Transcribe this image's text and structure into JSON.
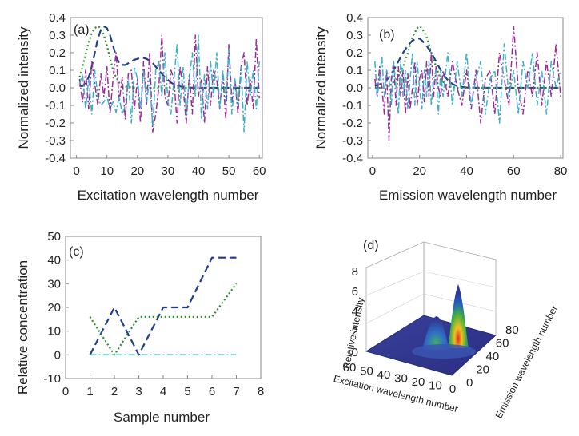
{
  "chart_data": [
    {
      "id": "a",
      "type": "line",
      "panel_label": "(a)",
      "xlabel": "Excitation wavelength number",
      "ylabel": "Normalized intensity",
      "xlim": [
        -2,
        61
      ],
      "ylim": [
        -0.4,
        0.4
      ],
      "xticks": [
        0,
        10,
        20,
        30,
        40,
        50,
        60
      ],
      "yticks": [
        -0.4,
        -0.3,
        -0.2,
        -0.1,
        0.0,
        0.1,
        0.2,
        0.3,
        0.4
      ],
      "ytick_labels": [
        "-0.4",
        "-0.3",
        "-0.2",
        "-0.1",
        "0.0",
        "0.1",
        "0.2",
        "0.3",
        "0.4"
      ],
      "grid": false,
      "series": [
        {
          "color": "#1f3f8f",
          "dash": "9,5",
          "width": 2.2,
          "x": [
            1,
            2,
            3,
            4,
            5,
            6,
            7,
            8,
            9,
            10,
            11,
            12,
            13,
            14,
            15,
            16,
            17,
            18,
            19,
            20,
            21,
            22,
            23,
            24,
            25,
            26,
            27,
            28,
            29,
            30,
            31,
            32,
            33,
            34,
            35,
            36,
            37,
            38,
            39,
            40,
            42,
            44,
            46,
            48,
            50,
            52,
            54,
            56,
            58,
            60
          ],
          "y": [
            0.01,
            0.01,
            0.03,
            0.06,
            0.12,
            0.2,
            0.28,
            0.33,
            0.35,
            0.34,
            0.3,
            0.24,
            0.18,
            0.14,
            0.13,
            0.13,
            0.14,
            0.15,
            0.16,
            0.165,
            0.17,
            0.17,
            0.165,
            0.155,
            0.14,
            0.12,
            0.1,
            0.08,
            0.06,
            0.045,
            0.03,
            0.02,
            0.013,
            0.008,
            0.005,
            0.003,
            0.002,
            0.001,
            0,
            0,
            0,
            0,
            0,
            0,
            0,
            0,
            0,
            0,
            0,
            0
          ]
        },
        {
          "color": "#2e8b2e",
          "dash": "2,3",
          "width": 2.2,
          "x": [
            1,
            2,
            3,
            4,
            5,
            6,
            7,
            8,
            9,
            10,
            11,
            12,
            13,
            14,
            15,
            16,
            17,
            18,
            20,
            22,
            24,
            26,
            28,
            30,
            32,
            34,
            36,
            38,
            40,
            44,
            48,
            52,
            56,
            60
          ],
          "y": [
            0.06,
            0.12,
            0.19,
            0.26,
            0.31,
            0.34,
            0.35,
            0.34,
            0.3,
            0.24,
            0.17,
            0.1,
            0.06,
            0.03,
            0.015,
            0.008,
            0.004,
            0.002,
            0.001,
            0,
            0,
            0,
            0,
            0,
            0,
            0,
            0,
            0,
            0,
            0,
            0,
            0,
            0,
            0
          ]
        },
        {
          "color": "#9c2a9c",
          "dash": "8,3,2,3",
          "width": 1.5,
          "x": [
            1,
            2,
            3,
            4,
            5,
            6,
            7,
            8,
            9,
            10,
            11,
            12,
            13,
            14,
            15,
            16,
            17,
            18,
            19,
            20,
            21,
            22,
            23,
            24,
            25,
            26,
            27,
            28,
            29,
            30,
            31,
            32,
            33,
            34,
            35,
            36,
            37,
            38,
            39,
            40,
            41,
            42,
            43,
            44,
            45,
            46,
            47,
            48,
            49,
            50,
            51,
            52,
            53,
            54,
            55,
            56,
            57,
            58,
            59,
            60
          ],
          "y": [
            0.05,
            -0.08,
            0.1,
            -0.12,
            0.15,
            0.02,
            -0.1,
            0.08,
            -0.05,
            0.12,
            -0.15,
            0.05,
            0.2,
            -0.08,
            0.06,
            -0.18,
            0.08,
            0.1,
            -0.12,
            0.05,
            -0.2,
            0.15,
            -0.1,
            0.2,
            -0.25,
            -0.15,
            0.0,
            0.3,
            -0.05,
            -0.1,
            0.1,
            0.05,
            -0.2,
            0.12,
            0.0,
            -0.2,
            0.08,
            -0.15,
            0.3,
            -0.05,
            0.05,
            -0.2,
            0.12,
            -0.1,
            0.1,
            0.05,
            -0.12,
            0.08,
            -0.18,
            0.25,
            -0.08,
            0.05,
            -0.15,
            0.12,
            0.2,
            -0.1,
            0.05,
            -0.12,
            0.28,
            -0.06
          ]
        },
        {
          "color": "#3ab0c8",
          "dash": "8,3,2,3",
          "width": 1.5,
          "x": [
            1,
            2,
            3,
            4,
            5,
            6,
            7,
            8,
            9,
            10,
            11,
            12,
            13,
            14,
            15,
            16,
            17,
            18,
            19,
            20,
            21,
            22,
            23,
            24,
            25,
            26,
            27,
            28,
            29,
            30,
            31,
            32,
            33,
            34,
            35,
            36,
            37,
            38,
            39,
            40,
            41,
            42,
            43,
            44,
            45,
            46,
            47,
            48,
            49,
            50,
            51,
            52,
            53,
            54,
            55,
            56,
            57,
            58,
            59,
            60
          ],
          "y": [
            0.02,
            0.08,
            -0.12,
            0.05,
            -0.15,
            0.1,
            -0.05,
            -0.1,
            -0.08,
            -0.05,
            -0.12,
            -0.08,
            -0.14,
            -0.05,
            -0.15,
            -0.1,
            0.05,
            -0.2,
            0.12,
            0.05,
            -0.12,
            0.1,
            -0.08,
            0.05,
            -0.22,
            0.1,
            0.15,
            -0.05,
            0.2,
            -0.08,
            -0.15,
            0.05,
            0.25,
            -0.1,
            0.12,
            -0.15,
            0.05,
            0.2,
            -0.05,
            0.3,
            -0.18,
            0.08,
            -0.12,
            0.15,
            -0.05,
            0.2,
            -0.12,
            0.1,
            -0.08,
            0.22,
            -0.15,
            0.05,
            -0.1,
            0.12,
            -0.25,
            0.15,
            -0.05,
            0.1,
            -0.12,
            0.15
          ]
        }
      ]
    },
    {
      "id": "b",
      "type": "line",
      "panel_label": "(b)",
      "xlabel": "Emission wavelength number",
      "ylabel": "Normalized intensity",
      "xlim": [
        -2,
        81
      ],
      "ylim": [
        -0.4,
        0.4
      ],
      "xticks": [
        0,
        20,
        40,
        60,
        80
      ],
      "yticks": [
        -0.4,
        -0.3,
        -0.2,
        -0.1,
        0.0,
        0.1,
        0.2,
        0.3,
        0.4
      ],
      "ytick_labels": [
        "-0.4",
        "-0.3",
        "-0.2",
        "-0.1",
        "0.0",
        "0.1",
        "0.2",
        "0.3",
        "0.4"
      ],
      "grid": false,
      "series": [
        {
          "color": "#1f3f8f",
          "dash": "9,5",
          "width": 2.2,
          "x": [
            1,
            3,
            5,
            7,
            9,
            11,
            13,
            15,
            17,
            19,
            20,
            21,
            23,
            25,
            27,
            29,
            31,
            33,
            35,
            37,
            39,
            41,
            45,
            50,
            55,
            60,
            65,
            70,
            75,
            80
          ],
          "y": [
            0.01,
            0.02,
            0.03,
            0.06,
            0.1,
            0.15,
            0.2,
            0.24,
            0.27,
            0.28,
            0.28,
            0.27,
            0.24,
            0.2,
            0.15,
            0.1,
            0.06,
            0.03,
            0.015,
            0.007,
            0.003,
            0.001,
            0,
            0,
            0,
            0,
            0,
            0,
            0,
            0
          ]
        },
        {
          "color": "#2e8b2e",
          "dash": "2,3",
          "width": 2.2,
          "x": [
            1,
            4,
            7,
            10,
            13,
            15,
            17,
            19,
            20,
            21,
            23,
            25,
            27,
            29,
            31,
            33,
            36,
            40,
            45,
            50,
            60,
            70,
            80
          ],
          "y": [
            0.0,
            0.0,
            0.01,
            0.04,
            0.12,
            0.2,
            0.29,
            0.34,
            0.35,
            0.34,
            0.29,
            0.2,
            0.12,
            0.05,
            0.02,
            0.005,
            0,
            0,
            0,
            0,
            0,
            0,
            0
          ]
        },
        {
          "color": "#9c2a9c",
          "dash": "8,3,2,3",
          "width": 1.5,
          "x": [
            1,
            2,
            3,
            4,
            5,
            6,
            7,
            8,
            9,
            10,
            11,
            12,
            13,
            14,
            15,
            16,
            17,
            18,
            19,
            20,
            21,
            22,
            23,
            24,
            25,
            26,
            27,
            28,
            29,
            30,
            32,
            34,
            36,
            38,
            40,
            42,
            44,
            46,
            48,
            50,
            52,
            54,
            56,
            58,
            60,
            62,
            64,
            66,
            68,
            70,
            72,
            74,
            76,
            78,
            80
          ],
          "y": [
            0.05,
            -0.05,
            0.12,
            0.0,
            -0.15,
            0.1,
            -0.3,
            0.05,
            0.15,
            -0.1,
            0.12,
            -0.05,
            0.1,
            -0.15,
            0.08,
            -0.12,
            0.0,
            0.15,
            -0.1,
            0.05,
            0.1,
            -0.08,
            0.15,
            -0.05,
            0.2,
            -0.05,
            0.12,
            0.0,
            -0.05,
            0.1,
            -0.05,
            0.15,
            0.0,
            -0.1,
            0.1,
            -0.12,
            0.1,
            -0.2,
            0.05,
            0.1,
            -0.15,
            0.2,
            0.05,
            -0.1,
            0.35,
            0.0,
            -0.15,
            0.1,
            -0.05,
            0.2,
            -0.1,
            0.15,
            -0.05,
            0.25,
            -0.05
          ]
        },
        {
          "color": "#3ab0c8",
          "dash": "8,3,2,3",
          "width": 1.5,
          "x": [
            1,
            2,
            3,
            4,
            5,
            6,
            7,
            8,
            9,
            10,
            11,
            12,
            13,
            14,
            15,
            16,
            17,
            18,
            19,
            20,
            21,
            22,
            23,
            24,
            25,
            26,
            27,
            28,
            29,
            30,
            32,
            34,
            36,
            38,
            40,
            42,
            44,
            46,
            48,
            50,
            52,
            54,
            56,
            58,
            60,
            62,
            64,
            66,
            68,
            70,
            72,
            74,
            76,
            78,
            80
          ],
          "y": [
            0.15,
            -0.05,
            0.05,
            0.18,
            -0.05,
            0.1,
            0.05,
            -0.1,
            0.15,
            0.0,
            -0.15,
            0.15,
            -0.05,
            0.1,
            -0.12,
            0.05,
            0.2,
            -0.1,
            0.15,
            0.0,
            -0.12,
            0.1,
            -0.05,
            0.15,
            -0.1,
            0.05,
            0.1,
            -0.15,
            0.1,
            -0.05,
            0.2,
            -0.1,
            0.15,
            -0.05,
            0.2,
            -0.1,
            0.05,
            0.15,
            -0.15,
            0.05,
            0.1,
            -0.2,
            0.25,
            -0.05,
            0.1,
            -0.15,
            0.15,
            0.0,
            0.2,
            -0.1,
            0.1,
            -0.15,
            0.15,
            0.0,
            0.1
          ]
        }
      ]
    },
    {
      "id": "c",
      "type": "line",
      "panel_label": "(c)",
      "xlabel": "Sample number",
      "ylabel": "Relative concentration",
      "xlim": [
        0,
        8
      ],
      "ylim": [
        -10,
        50
      ],
      "xticks": [
        0,
        1,
        2,
        3,
        4,
        5,
        6,
        7,
        8
      ],
      "yticks": [
        -10,
        0,
        10,
        20,
        30,
        40,
        50
      ],
      "ytick_labels": [
        "-10",
        "0",
        "10",
        "20",
        "30",
        "40",
        "50"
      ],
      "grid": false,
      "series": [
        {
          "color": "#1f3f8f",
          "dash": "9,5",
          "width": 2.2,
          "x": [
            1,
            2,
            3,
            4,
            5,
            6,
            7
          ],
          "y": [
            0,
            20,
            0,
            20,
            20,
            41,
            41
          ]
        },
        {
          "color": "#2e8b2e",
          "dash": "2,3",
          "width": 2.2,
          "x": [
            1,
            2,
            3,
            4,
            5,
            6,
            7
          ],
          "y": [
            16,
            0,
            16,
            16,
            16,
            16,
            30
          ]
        },
        {
          "color": "#9c2a9c",
          "dash": "8,3,2,3",
          "width": 1.5,
          "x": [
            1,
            2,
            3,
            4,
            5,
            6,
            7
          ],
          "y": [
            0,
            0,
            0,
            0,
            0,
            0,
            0
          ]
        },
        {
          "color": "#3ab0c8",
          "dash": "8,3,2,3",
          "width": 1.5,
          "x": [
            1,
            2,
            3,
            4,
            5,
            6,
            7
          ],
          "y": [
            0,
            0,
            0,
            0,
            0,
            0,
            0
          ]
        }
      ]
    },
    {
      "id": "d",
      "type": "surface",
      "panel_label": "(d)",
      "xlabel": "Excitation wavelength number",
      "ylabel": "Emission wavelength number",
      "zlabel": "Relative intensity",
      "x_ticks": [
        "60",
        "50",
        "40",
        "30",
        "20",
        "10",
        "0"
      ],
      "y_ticks": [
        "0",
        "20",
        "40",
        "60",
        "80"
      ],
      "z_ticks": [
        "0",
        "2",
        "4",
        "6",
        "8"
      ],
      "peaks": [
        {
          "excitation": 8,
          "emission": 20,
          "height": 6.5
        },
        {
          "excitation": 22,
          "emission": 20,
          "height": 3.0
        }
      ]
    }
  ]
}
